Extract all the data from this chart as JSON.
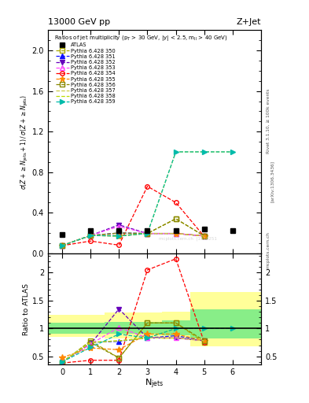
{
  "title_top": "13000 GeV pp",
  "title_right": "Z+Jet",
  "subtitle": "Ratios of jet multiplicity (p$_T$ > 30 GeV, |y| < 2.5, m$_{\\rm ll}$ > 40 GeV)",
  "ylabel_main": "$\\sigma(Z + \\geq N_{\\rm jets}+1)\\,/\\,\\sigma(Z + \\geq N_{\\rm jets})$",
  "ylabel_ratio": "Ratio to ATLAS",
  "xlabel": "N$_{\\rm jets}$",
  "right_label1": "Rivet 3.1.10, ≥ 100k events",
  "right_label2": "[arXiv:1306.3436]",
  "right_label3": "mcplots.cern.ch",
  "ylim_main": [
    0.0,
    2.2
  ],
  "ylim_ratio": [
    0.35,
    2.35
  ],
  "xmin": -0.5,
  "xmax": 7.0,
  "atlas_x": [
    0,
    1,
    2,
    3,
    4,
    5,
    6
  ],
  "atlas_y": [
    0.185,
    0.22,
    0.22,
    0.22,
    0.22,
    0.235,
    0.22
  ],
  "series": [
    {
      "label": "Pythia 6.428 350",
      "color": "#aaaa00",
      "marker": "s",
      "filled": false,
      "x": [
        0,
        1,
        2,
        3,
        4,
        5
      ],
      "y": [
        0.075,
        0.175,
        0.175,
        0.195,
        0.34,
        0.17
      ],
      "ratio_y": [
        0.39,
        0.78,
        0.47,
        1.1,
        1.1,
        0.75
      ]
    },
    {
      "label": "Pythia 6.428 351",
      "color": "#1111ff",
      "marker": "^",
      "filled": true,
      "x": [
        0,
        1,
        2,
        3,
        4,
        5
      ],
      "y": [
        0.075,
        0.175,
        0.2,
        0.195,
        0.195,
        0.17
      ],
      "ratio_y": [
        0.4,
        0.75,
        0.77,
        0.83,
        0.87,
        0.78
      ]
    },
    {
      "label": "Pythia 6.428 352",
      "color": "#6600bb",
      "marker": "v",
      "filled": true,
      "x": [
        0,
        1,
        2,
        3,
        4,
        5
      ],
      "y": [
        0.075,
        0.175,
        0.28,
        0.195,
        0.195,
        0.17
      ],
      "ratio_y": [
        0.4,
        0.72,
        1.35,
        0.83,
        0.83,
        0.78
      ]
    },
    {
      "label": "Pythia 6.428 353",
      "color": "#ff44ff",
      "marker": "^",
      "filled": false,
      "x": [
        0,
        1,
        2,
        3,
        4,
        5
      ],
      "y": [
        0.075,
        0.175,
        0.265,
        0.195,
        0.195,
        0.17
      ],
      "ratio_y": [
        0.4,
        0.72,
        1.02,
        0.83,
        0.83,
        0.78
      ]
    },
    {
      "label": "Pythia 6.428 354",
      "color": "#ff0000",
      "marker": "o",
      "filled": false,
      "x": [
        0,
        1,
        2,
        3,
        4,
        5
      ],
      "y": [
        0.075,
        0.12,
        0.08,
        0.66,
        0.5,
        0.165
      ],
      "ratio_y": [
        0.38,
        0.43,
        0.43,
        2.05,
        2.25,
        0.75
      ]
    },
    {
      "label": "Pythia 6.428 355",
      "color": "#ff8800",
      "marker": "*",
      "filled": true,
      "x": [
        0,
        1,
        2,
        3,
        4,
        5
      ],
      "y": [
        0.075,
        0.175,
        0.17,
        0.195,
        0.195,
        0.17
      ],
      "ratio_y": [
        0.48,
        0.65,
        0.62,
        0.9,
        0.9,
        0.78
      ]
    },
    {
      "label": "Pythia 6.428 356",
      "color": "#888800",
      "marker": "s",
      "filled": false,
      "x": [
        0,
        1,
        2,
        3,
        4,
        5
      ],
      "y": [
        0.075,
        0.175,
        0.2,
        0.195,
        0.34,
        0.17
      ],
      "ratio_y": [
        0.39,
        0.75,
        0.47,
        1.1,
        1.1,
        0.78
      ]
    },
    {
      "label": "Pythia 6.428 357",
      "color": "#cccc44",
      "marker": "none",
      "filled": false,
      "x": [
        0,
        1,
        2,
        3,
        4,
        5
      ],
      "y": [
        0.075,
        0.175,
        0.17,
        0.195,
        0.195,
        0.17
      ],
      "ratio_y": [
        0.4,
        0.75,
        0.78,
        0.83,
        0.83,
        0.78
      ]
    },
    {
      "label": "Pythia 6.428 358",
      "color": "#bbdd00",
      "marker": "none",
      "filled": false,
      "x": [
        0,
        1,
        2,
        3,
        4,
        5,
        6
      ],
      "y": [
        0.075,
        0.175,
        0.17,
        0.195,
        1.0,
        1.0,
        1.0
      ],
      "ratio_y": [
        0.4,
        0.75,
        0.78,
        0.83,
        1.0,
        1.0,
        1.0
      ]
    },
    {
      "label": "Pythia 6.428 359",
      "color": "#00bbaa",
      "marker": ">",
      "filled": true,
      "x": [
        0,
        1,
        2,
        3,
        4,
        5,
        6
      ],
      "y": [
        0.075,
        0.175,
        0.17,
        0.195,
        1.0,
        1.0,
        1.0
      ],
      "ratio_y": [
        0.4,
        0.66,
        0.9,
        0.83,
        1.0,
        1.0,
        1.0
      ]
    }
  ],
  "band_yellow_edges": [
    -0.5,
    0.5,
    1.5,
    2.5,
    3.5,
    4.5,
    5.5,
    7.0
  ],
  "band_yellow_lo": [
    0.85,
    0.85,
    0.82,
    0.82,
    0.8,
    0.68,
    0.68
  ],
  "band_yellow_hi": [
    1.25,
    1.25,
    1.28,
    1.28,
    1.3,
    1.65,
    1.65
  ],
  "band_green_edges": [
    -0.5,
    0.5,
    1.5,
    2.5,
    3.5,
    4.5,
    5.5,
    7.0
  ],
  "band_green_lo": [
    0.9,
    0.9,
    0.9,
    0.9,
    0.88,
    0.82,
    0.82
  ],
  "band_green_hi": [
    1.1,
    1.1,
    1.12,
    1.12,
    1.15,
    1.35,
    1.35
  ]
}
